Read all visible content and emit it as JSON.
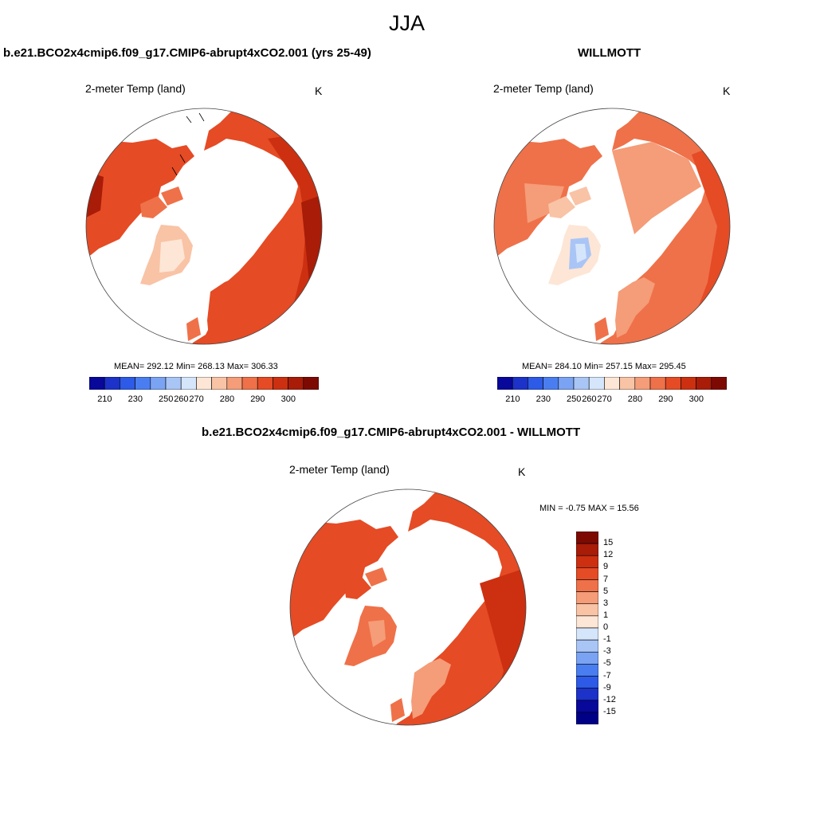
{
  "season": "JJA",
  "panels": {
    "model": {
      "title": "b.e21.BCO2x4cmip6.f09_g17.CMIP6-abrupt4xCO2.001 (yrs 25-49)",
      "variable": "2-meter Temp (land)",
      "units": "K",
      "stats": "MEAN= 292.12  Min= 268.13  Max= 306.33"
    },
    "obs": {
      "title": "WILLMOTT",
      "variable": "2-meter Temp (land)",
      "units": "K",
      "stats": "MEAN= 284.10  Min= 257.15  Max= 295.45"
    },
    "diff": {
      "title": "b.e21.BCO2x4cmip6.f09_g17.CMIP6-abrupt4xCO2.001 - WILLMOTT",
      "variable": "2-meter Temp (land)",
      "units": "K",
      "stats": "MIN =  -0.75 MAX =  15.56"
    }
  },
  "abs_colorbar": {
    "labels": [
      "210",
      "230",
      "250",
      "260",
      "270",
      "280",
      "290",
      "300"
    ],
    "colors": [
      "#08089a",
      "#1c32c8",
      "#2d5ae6",
      "#4a7ef0",
      "#7aa3f3",
      "#a9c5f6",
      "#d5e5fa",
      "#fde6d6",
      "#f9c3a6",
      "#f59c78",
      "#ef7149",
      "#e54b25",
      "#cc3010",
      "#a81c08",
      "#7d0a02"
    ]
  },
  "diff_colorbar": {
    "labels": [
      "15",
      "12",
      "9",
      "7",
      "5",
      "3",
      "1",
      "0",
      "-1",
      "-3",
      "-5",
      "-7",
      "-9",
      "-12",
      "-15"
    ],
    "colors": [
      "#7d0a02",
      "#a81c08",
      "#cc3010",
      "#e54b25",
      "#ef7149",
      "#f59c78",
      "#f9c3a6",
      "#fde6d6",
      "#d5e5fa",
      "#a9c5f6",
      "#7aa3f3",
      "#4a7ef0",
      "#2d5ae6",
      "#1c32c8",
      "#08089a",
      "#000086"
    ]
  }
}
